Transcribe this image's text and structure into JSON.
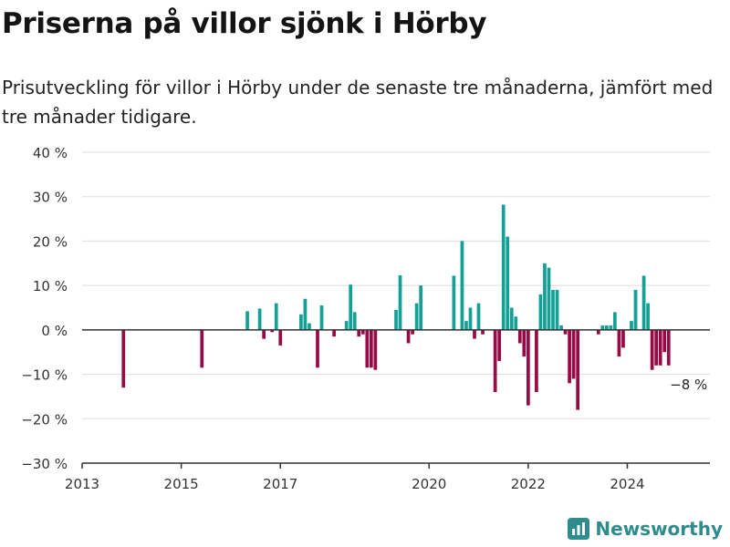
{
  "header": {
    "title": "Priserna på villor sjönk i Hörby",
    "subtitle": "Prisutveckling för villor i Hörby under de senaste tre månaderna, jämfört med tre månader tidigare."
  },
  "brand": {
    "name": "Newsworthy",
    "icon": "newsworthy-logo-icon",
    "color": "#2e8c8c"
  },
  "colors": {
    "positive": "#14a095",
    "negative": "#960a45",
    "grid": "#dddddd",
    "axis": "#333333"
  },
  "chart_data": {
    "type": "bar",
    "title": "",
    "xlabel": "",
    "ylabel": "",
    "ylim": [
      -30,
      40
    ],
    "xlim": [
      "2013-01",
      "2025-09"
    ],
    "y_ticks": [
      -30,
      -20,
      -10,
      0,
      10,
      20,
      30,
      40
    ],
    "y_tick_labels": [
      "−30 %",
      "−20 %",
      "−10 %",
      "0 %",
      "10 %",
      "20 %",
      "30 %",
      "40 %"
    ],
    "x_ticks": [
      "2013-01",
      "2015-01",
      "2017-01",
      "2020-01",
      "2022-01",
      "2024-01"
    ],
    "x_tick_labels": [
      "2013",
      "2015",
      "2017",
      "2020",
      "2022",
      "2024"
    ],
    "grid": true,
    "last_value_label": "−8 %",
    "series": [
      {
        "x": [
          "2013-11",
          "2015-06",
          "2016-05",
          "2016-08",
          "2016-09",
          "2016-11",
          "2016-12",
          "2017-01",
          "2017-06",
          "2017-07",
          "2017-08",
          "2017-10",
          "2017-11",
          "2018-02",
          "2018-05",
          "2018-06",
          "2018-07",
          "2018-08",
          "2018-09",
          "2018-10",
          "2018-11",
          "2018-12",
          "2019-05",
          "2019-06",
          "2019-08",
          "2019-09",
          "2019-10",
          "2019-11",
          "2020-07",
          "2020-09",
          "2020-10",
          "2020-11",
          "2020-12",
          "2021-01",
          "2021-02",
          "2021-05",
          "2021-06",
          "2021-07",
          "2021-08",
          "2021-09",
          "2021-10",
          "2021-11",
          "2021-12",
          "2022-01",
          "2022-03",
          "2022-04",
          "2022-05",
          "2022-06",
          "2022-07",
          "2022-08",
          "2022-09",
          "2022-10",
          "2022-11",
          "2022-12",
          "2023-01",
          "2023-06",
          "2023-07",
          "2023-08",
          "2023-09",
          "2023-10",
          "2023-11",
          "2023-12",
          "2024-02",
          "2024-03",
          "2024-04",
          "2024-05",
          "2024-06",
          "2024-07",
          "2024-08",
          "2024-09",
          "2024-10",
          "2024-11"
        ],
        "values": [
          -13,
          -8.5,
          4.2,
          4.8,
          -2,
          -0.5,
          6,
          -3.5,
          3.5,
          7,
          1.5,
          -8.5,
          5.5,
          -1.5,
          2,
          10.2,
          4,
          -1.5,
          -1,
          -8.5,
          -8.5,
          -9,
          4.5,
          12.3,
          -3,
          -1,
          6,
          10,
          12.2,
          20,
          2,
          5,
          -2,
          6,
          -1,
          -14,
          -7,
          28.2,
          21,
          5,
          3,
          -3,
          -6,
          -17,
          -14,
          8,
          15,
          14,
          9,
          9,
          1,
          -1,
          -12,
          -11,
          -18,
          -1,
          1,
          1,
          1,
          4,
          -6,
          -4,
          2,
          9,
          0,
          12.2,
          6,
          -9,
          -8,
          -8,
          -5,
          -8
        ]
      }
    ]
  }
}
